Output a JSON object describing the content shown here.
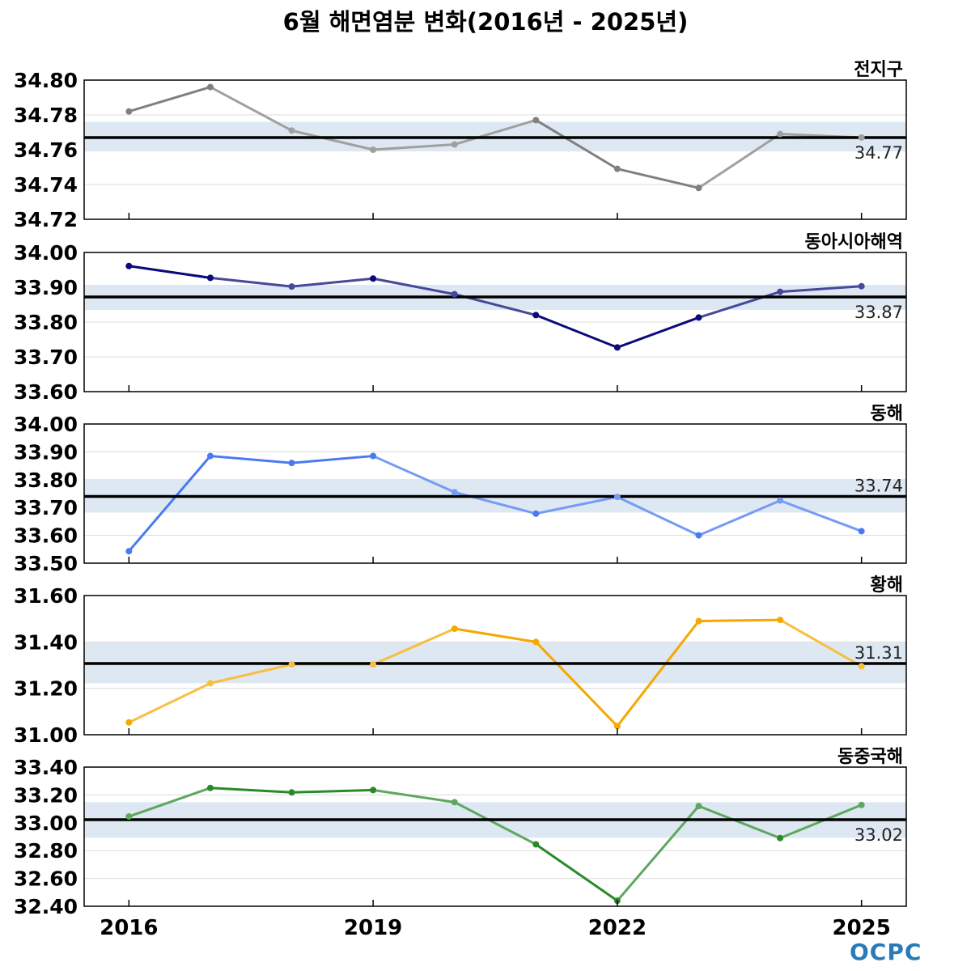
{
  "title": "6월 해면염분 변화(2016년 - 2025년)",
  "logo": "OCPC",
  "chart_data": [
    {
      "type": "line",
      "region": "전지구",
      "x": [
        2016,
        2017,
        2018,
        2019,
        2020,
        2021,
        2022,
        2023,
        2024,
        2025
      ],
      "values": [
        34.782,
        34.796,
        34.771,
        34.76,
        34.763,
        34.777,
        34.749,
        34.738,
        34.769,
        34.767
      ],
      "mean": 34.767,
      "mean_label": "34.77",
      "band": [
        34.759,
        34.776
      ],
      "ylim": [
        34.72,
        34.8
      ],
      "yticks": [
        "34.80",
        "34.78",
        "34.76",
        "34.74",
        "34.72"
      ],
      "yticks_values": [
        34.8,
        34.78,
        34.76,
        34.74,
        34.72
      ],
      "color": "#808080",
      "mean_label_pos": "below",
      "grid": true
    },
    {
      "type": "line",
      "region": "동아시아해역",
      "x": [
        2016,
        2017,
        2018,
        2019,
        2020,
        2021,
        2022,
        2023,
        2024,
        2025
      ],
      "values": [
        33.961,
        33.927,
        33.902,
        33.925,
        33.88,
        33.82,
        33.727,
        33.813,
        33.887,
        33.903
      ],
      "mean": 33.872,
      "mean_label": "33.87",
      "band": [
        33.835,
        33.907
      ],
      "ylim": [
        33.6,
        34.0
      ],
      "yticks": [
        "34.00",
        "33.90",
        "33.80",
        "33.70",
        "33.60"
      ],
      "yticks_values": [
        34.0,
        33.9,
        33.8,
        33.7,
        33.6
      ],
      "color": "#0a0a7a",
      "mean_label_pos": "below",
      "grid": true
    },
    {
      "type": "line",
      "region": "동해",
      "x": [
        2016,
        2017,
        2018,
        2019,
        2020,
        2021,
        2022,
        2023,
        2024,
        2025
      ],
      "values": [
        33.543,
        33.885,
        33.86,
        33.885,
        33.755,
        33.678,
        33.738,
        33.6,
        33.725,
        33.615
      ],
      "mean": 33.74,
      "mean_label": "33.74",
      "band": [
        33.682,
        33.8
      ],
      "ylim": [
        33.5,
        34.0
      ],
      "yticks": [
        "34.00",
        "33.90",
        "33.80",
        "33.70",
        "33.60",
        "33.50"
      ],
      "yticks_values": [
        34.0,
        33.9,
        33.8,
        33.7,
        33.6,
        33.5
      ],
      "color": "#4a7af0",
      "mean_label_pos": "above",
      "grid": true
    },
    {
      "type": "line",
      "region": "황해",
      "x": [
        2016,
        2017,
        2018,
        2019,
        2020,
        2021,
        2022,
        2023,
        2024,
        2025
      ],
      "values": [
        31.053,
        31.222,
        31.303,
        31.303,
        31.457,
        31.4,
        31.037,
        31.49,
        31.495,
        31.295
      ],
      "mean": 31.307,
      "mean_label": "31.31",
      "band": [
        31.222,
        31.397
      ],
      "ylim": [
        31.0,
        31.6
      ],
      "yticks": [
        "31.60",
        "31.40",
        "31.20",
        "31.00"
      ],
      "yticks_values": [
        31.6,
        31.4,
        31.2,
        31.0
      ],
      "color": "#f5a800",
      "mean_label_pos": "above",
      "grid": true
    },
    {
      "type": "line",
      "region": "동중국해",
      "x": [
        2016,
        2017,
        2018,
        2019,
        2020,
        2021,
        2022,
        2023,
        2024,
        2025
      ],
      "values": [
        33.045,
        33.25,
        33.218,
        33.235,
        33.148,
        32.845,
        32.44,
        33.12,
        32.89,
        33.128
      ],
      "mean": 33.022,
      "mean_label": "33.02",
      "band": [
        32.892,
        33.148
      ],
      "ylim": [
        32.4,
        33.4
      ],
      "yticks": [
        "33.40",
        "33.20",
        "33.00",
        "32.80",
        "32.60",
        "32.40"
      ],
      "yticks_values": [
        33.4,
        33.2,
        33.0,
        32.8,
        32.6,
        32.4
      ],
      "color": "#2a8a2a",
      "mean_label_pos": "below",
      "grid": true
    }
  ],
  "xticks": [
    "2016",
    "2019",
    "2022",
    "2025"
  ],
  "xticks_values": [
    2016,
    2019,
    2022,
    2025
  ],
  "xlim": [
    2015.45,
    2025.55
  ],
  "band_color": "#dde8f3",
  "mean_line_color": "#000000"
}
